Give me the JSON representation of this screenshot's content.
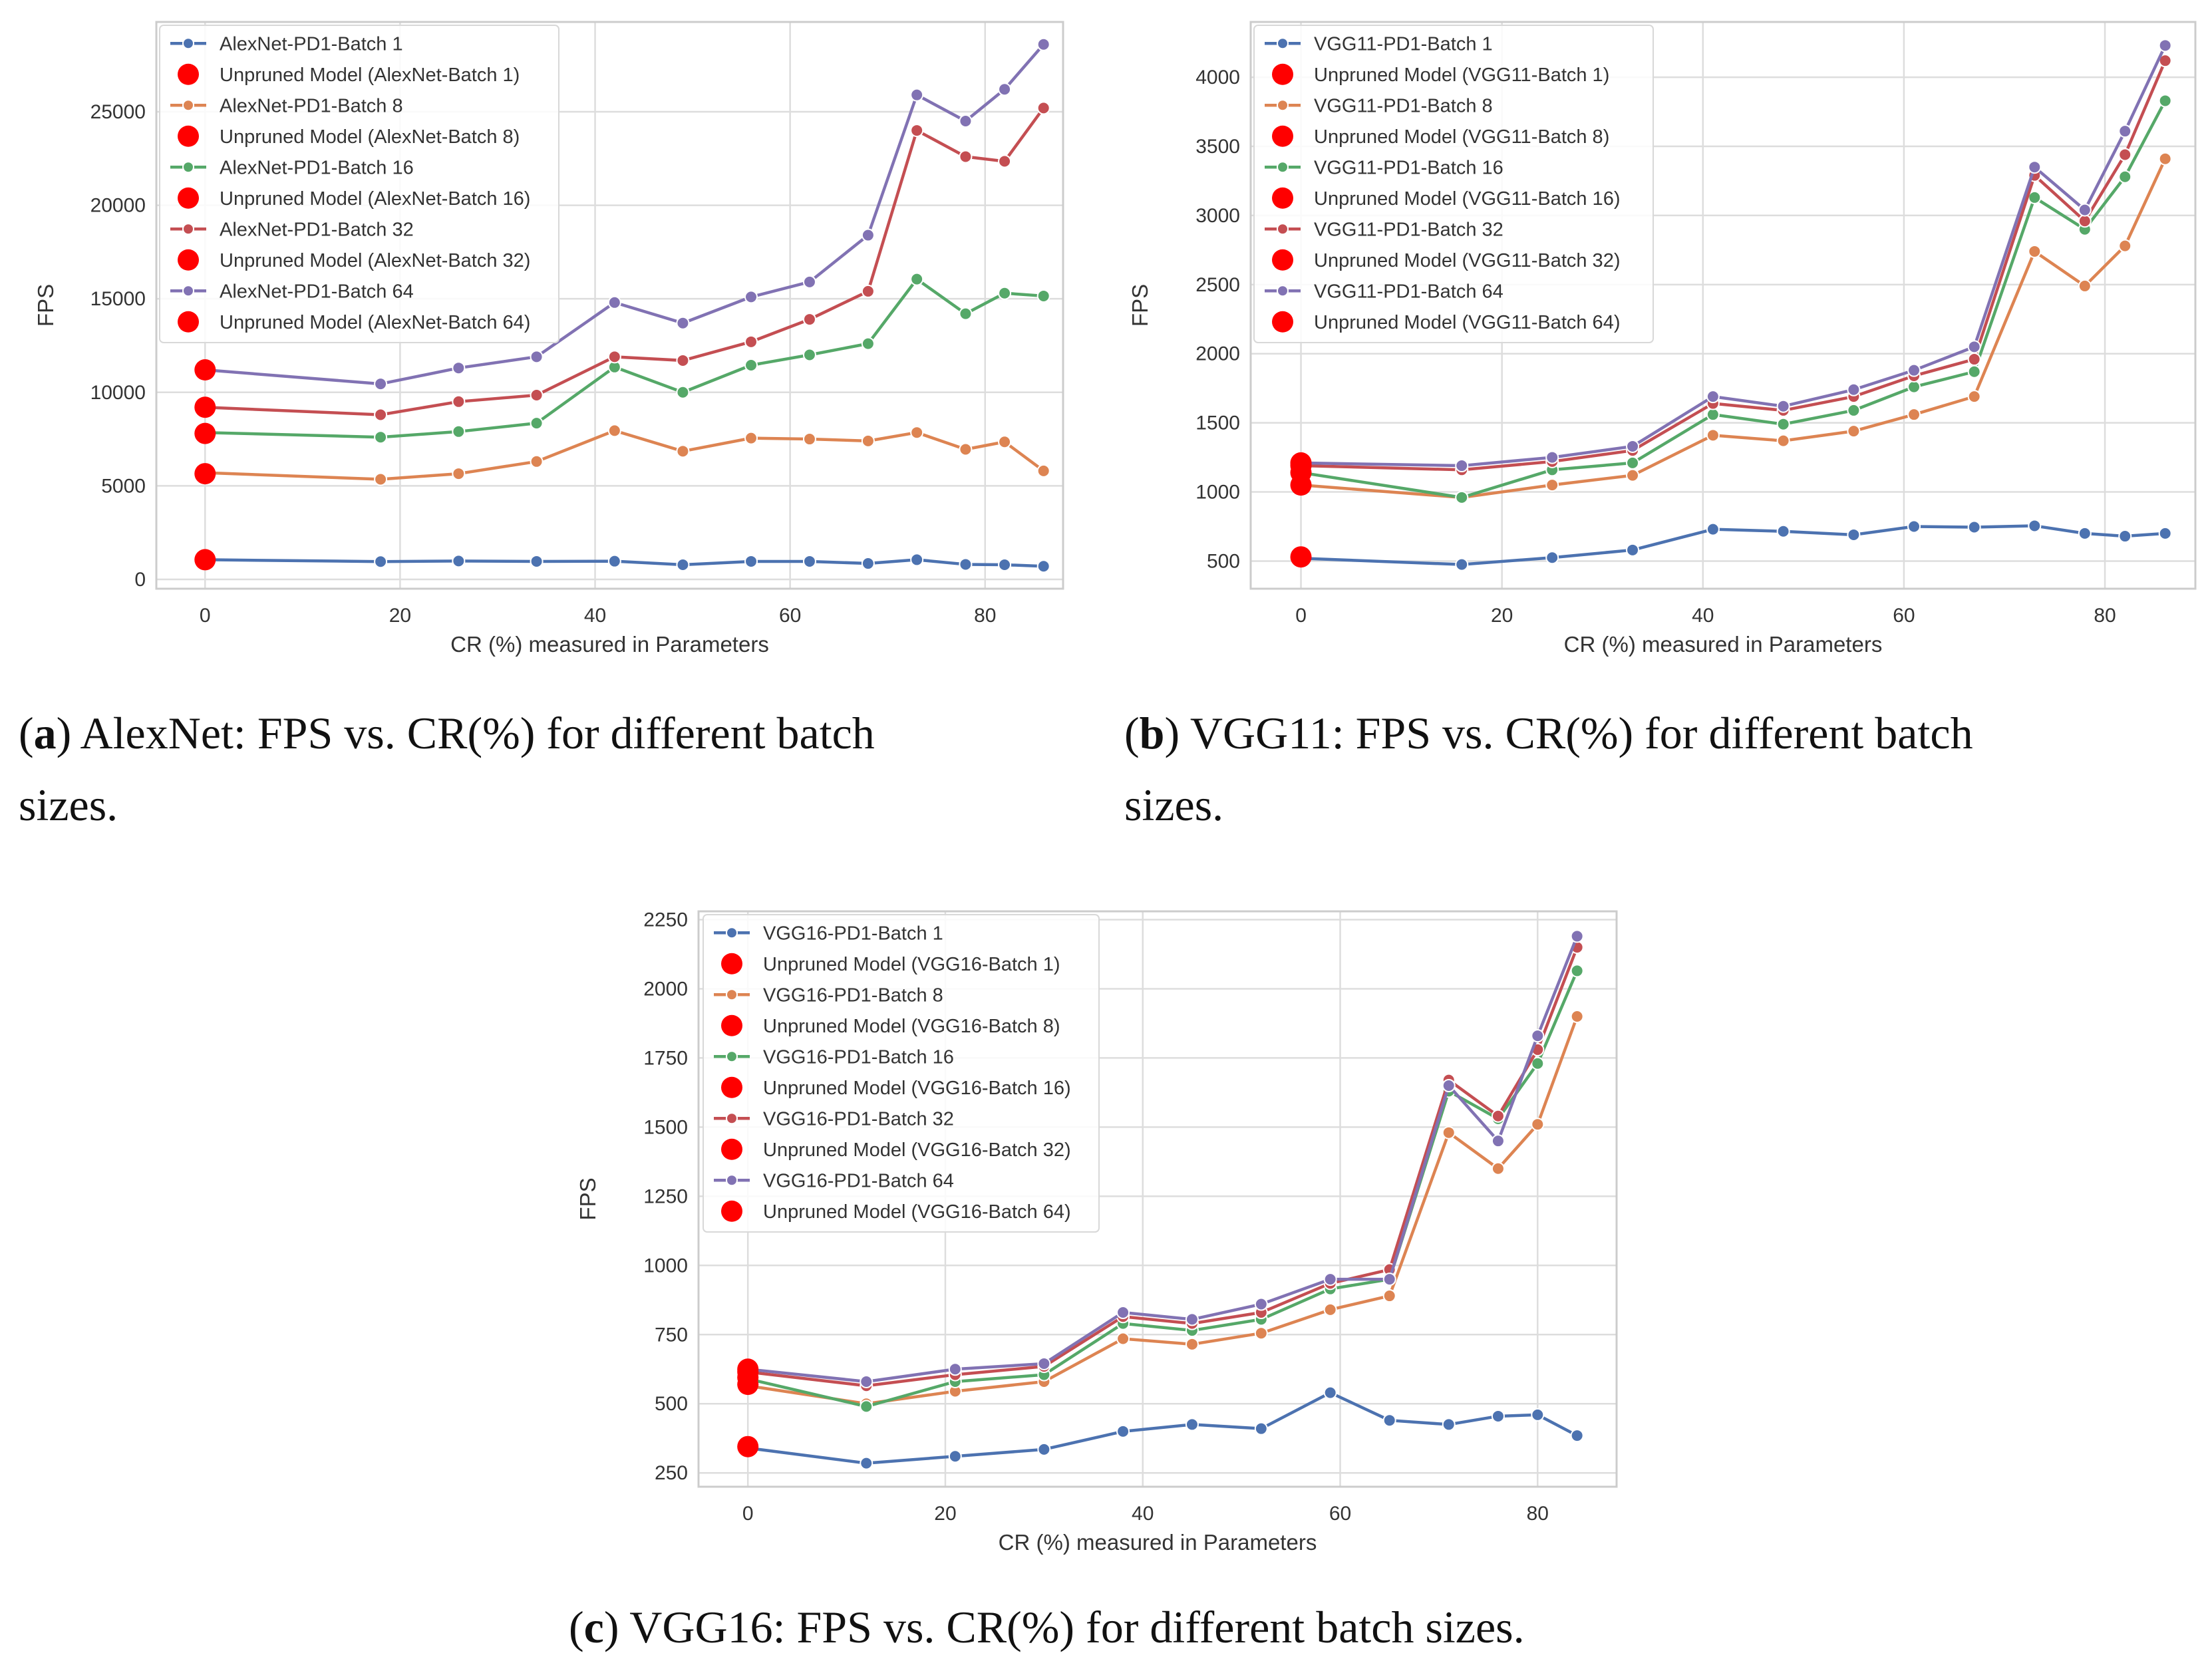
{
  "colors": {
    "batch_1": "#4c72b0",
    "batch_8": "#dd8452",
    "batch_16": "#55a868",
    "batch_32": "#c44e52",
    "batch_64": "#8172b3",
    "unpruned": "#ff0000",
    "grid": "#dddddd",
    "frame": "#cccccc"
  },
  "captions": {
    "a": {
      "label": "a",
      "prefix": "(",
      "suffix": ")",
      "text": " AlexNet:  FPS vs.  CR(%) for different batch",
      "text2": "sizes."
    },
    "b": {
      "label": "b",
      "prefix": "(",
      "suffix": ")",
      "text": " VGG11:  FPS vs.  CR(%) for different batch",
      "text2": "sizes."
    },
    "c": {
      "label": "c",
      "prefix": "(",
      "suffix": ")",
      "text": " VGG16: FPS vs. CR(%) for different batch sizes."
    }
  },
  "chart_data": [
    {
      "id": "alexnet",
      "type": "line",
      "title": "",
      "xlabel": "CR (%) measured in Parameters",
      "ylabel": "FPS",
      "xlim": [
        -5,
        88
      ],
      "ylim": [
        -500,
        29800
      ],
      "xticks": [
        0,
        20,
        40,
        60,
        80
      ],
      "yticks": [
        0,
        5000,
        10000,
        15000,
        20000,
        25000
      ],
      "x": [
        0,
        18,
        26,
        34,
        42,
        49,
        56,
        62,
        68,
        73,
        78,
        82,
        86
      ],
      "series": [
        {
          "name": "AlexNet-PD1-Batch 1",
          "key": "batch_1",
          "values": [
            1050,
            950,
            980,
            960,
            970,
            780,
            960,
            960,
            850,
            1050,
            800,
            780,
            700
          ]
        },
        {
          "name": "AlexNet-PD1-Batch 8",
          "key": "batch_8",
          "values": [
            5700,
            5350,
            5650,
            6300,
            7950,
            6850,
            7550,
            7500,
            7400,
            7850,
            6950,
            7350,
            5800
          ]
        },
        {
          "name": "AlexNet-PD1-Batch 16",
          "key": "batch_16",
          "values": [
            7850,
            7600,
            7900,
            8350,
            11350,
            10000,
            11450,
            12000,
            12600,
            16050,
            14200,
            15300,
            15150
          ]
        },
        {
          "name": "AlexNet-PD1-Batch 32",
          "key": "batch_32",
          "values": [
            9200,
            8800,
            9500,
            9850,
            11900,
            11700,
            12700,
            13900,
            15400,
            24000,
            22600,
            22350,
            25200
          ]
        },
        {
          "name": "AlexNet-PD1-Batch 64",
          "key": "batch_64",
          "values": [
            11200,
            10450,
            11300,
            11900,
            14800,
            13700,
            15100,
            15900,
            18400,
            25900,
            24500,
            26200,
            28600
          ]
        }
      ],
      "unpruned": [
        {
          "name": "Unpruned Model (AlexNet-Batch 1)",
          "x": 0,
          "y": 1050
        },
        {
          "name": "Unpruned Model (AlexNet-Batch 8)",
          "x": 0,
          "y": 5650
        },
        {
          "name": "Unpruned Model (AlexNet-Batch 16)",
          "x": 0,
          "y": 7800
        },
        {
          "name": "Unpruned Model (AlexNet-Batch 32)",
          "x": 0,
          "y": 9200
        },
        {
          "name": "Unpruned Model (AlexNet-Batch 64)",
          "x": 0,
          "y": 11200
        }
      ],
      "legend": "top-left"
    },
    {
      "id": "vgg11",
      "type": "line",
      "title": "",
      "xlabel": "CR (%) measured in Parameters",
      "ylabel": "FPS",
      "xlim": [
        -5,
        89
      ],
      "ylim": [
        300,
        4400
      ],
      "xticks": [
        0,
        20,
        40,
        60,
        80
      ],
      "yticks": [
        500,
        1000,
        1500,
        2000,
        2500,
        3000,
        3500,
        4000
      ],
      "x": [
        0,
        16,
        25,
        33,
        41,
        48,
        55,
        61,
        67,
        73,
        78,
        82,
        86
      ],
      "series": [
        {
          "name": "VGG11-PD1-Batch 1",
          "key": "batch_1",
          "values": [
            520,
            475,
            525,
            580,
            730,
            715,
            690,
            750,
            745,
            755,
            700,
            680,
            700
          ]
        },
        {
          "name": "VGG11-PD1-Batch 8",
          "key": "batch_8",
          "values": [
            1050,
            960,
            1050,
            1120,
            1410,
            1370,
            1440,
            1560,
            1690,
            2740,
            2490,
            2780,
            3410
          ]
        },
        {
          "name": "VGG11-PD1-Batch 16",
          "key": "batch_16",
          "values": [
            1140,
            960,
            1160,
            1210,
            1560,
            1490,
            1590,
            1760,
            1870,
            3130,
            2900,
            3280,
            3830
          ]
        },
        {
          "name": "VGG11-PD1-Batch 32",
          "key": "batch_32",
          "values": [
            1190,
            1160,
            1220,
            1300,
            1640,
            1590,
            1690,
            1840,
            1960,
            3290,
            2960,
            3440,
            4120
          ]
        },
        {
          "name": "VGG11-PD1-Batch 64",
          "key": "batch_64",
          "values": [
            1210,
            1190,
            1250,
            1330,
            1690,
            1620,
            1740,
            1880,
            2050,
            3350,
            3040,
            3610,
            4230
          ]
        }
      ],
      "unpruned": [
        {
          "name": "Unpruned Model (VGG11-Batch 1)",
          "x": 0,
          "y": 530
        },
        {
          "name": "Unpruned Model (VGG11-Batch 8)",
          "x": 0,
          "y": 1050
        },
        {
          "name": "Unpruned Model (VGG11-Batch 16)",
          "x": 0,
          "y": 1140
        },
        {
          "name": "Unpruned Model (VGG11-Batch 32)",
          "x": 0,
          "y": 1190
        },
        {
          "name": "Unpruned Model (VGG11-Batch 64)",
          "x": 0,
          "y": 1210
        }
      ],
      "legend": "top-left"
    },
    {
      "id": "vgg16",
      "type": "line",
      "title": "",
      "xlabel": "CR (%) measured in Parameters",
      "ylabel": "FPS",
      "xlim": [
        -5,
        88
      ],
      "ylim": [
        200,
        2280
      ],
      "xticks": [
        0,
        20,
        40,
        60,
        80
      ],
      "yticks": [
        250,
        500,
        750,
        1000,
        1250,
        1500,
        1750,
        2000,
        2250
      ],
      "x": [
        0,
        12,
        21,
        30,
        38,
        45,
        52,
        59,
        65,
        71,
        76,
        80,
        84
      ],
      "series": [
        {
          "name": "VGG16-PD1-Batch 1",
          "key": "batch_1",
          "values": [
            340,
            285,
            310,
            335,
            400,
            425,
            410,
            540,
            440,
            425,
            455,
            460,
            385
          ]
        },
        {
          "name": "VGG16-PD1-Batch 8",
          "key": "batch_8",
          "values": [
            565,
            500,
            545,
            580,
            735,
            715,
            755,
            840,
            890,
            1480,
            1350,
            1510,
            1900
          ]
        },
        {
          "name": "VGG16-PD1-Batch 16",
          "key": "batch_16",
          "values": [
            590,
            490,
            580,
            605,
            790,
            765,
            805,
            915,
            950,
            1630,
            1530,
            1730,
            2065
          ]
        },
        {
          "name": "VGG16-PD1-Batch 32",
          "key": "batch_32",
          "values": [
            615,
            565,
            605,
            635,
            815,
            790,
            830,
            935,
            985,
            1670,
            1540,
            1780,
            2150
          ]
        },
        {
          "name": "VGG16-PD1-Batch 64",
          "key": "batch_64",
          "values": [
            625,
            580,
            625,
            645,
            830,
            805,
            860,
            950,
            950,
            1650,
            1450,
            1830,
            2190
          ]
        }
      ],
      "unpruned": [
        {
          "name": "Unpruned Model (VGG16-Batch 1)",
          "x": 0,
          "y": 345
        },
        {
          "name": "Unpruned Model (VGG16-Batch 8)",
          "x": 0,
          "y": 570
        },
        {
          "name": "Unpruned Model (VGG16-Batch 16)",
          "x": 0,
          "y": 595
        },
        {
          "name": "Unpruned Model (VGG16-Batch 32)",
          "x": 0,
          "y": 615
        },
        {
          "name": "Unpruned Model (VGG16-Batch 64)",
          "x": 0,
          "y": 625
        }
      ],
      "legend": "top-left"
    }
  ]
}
